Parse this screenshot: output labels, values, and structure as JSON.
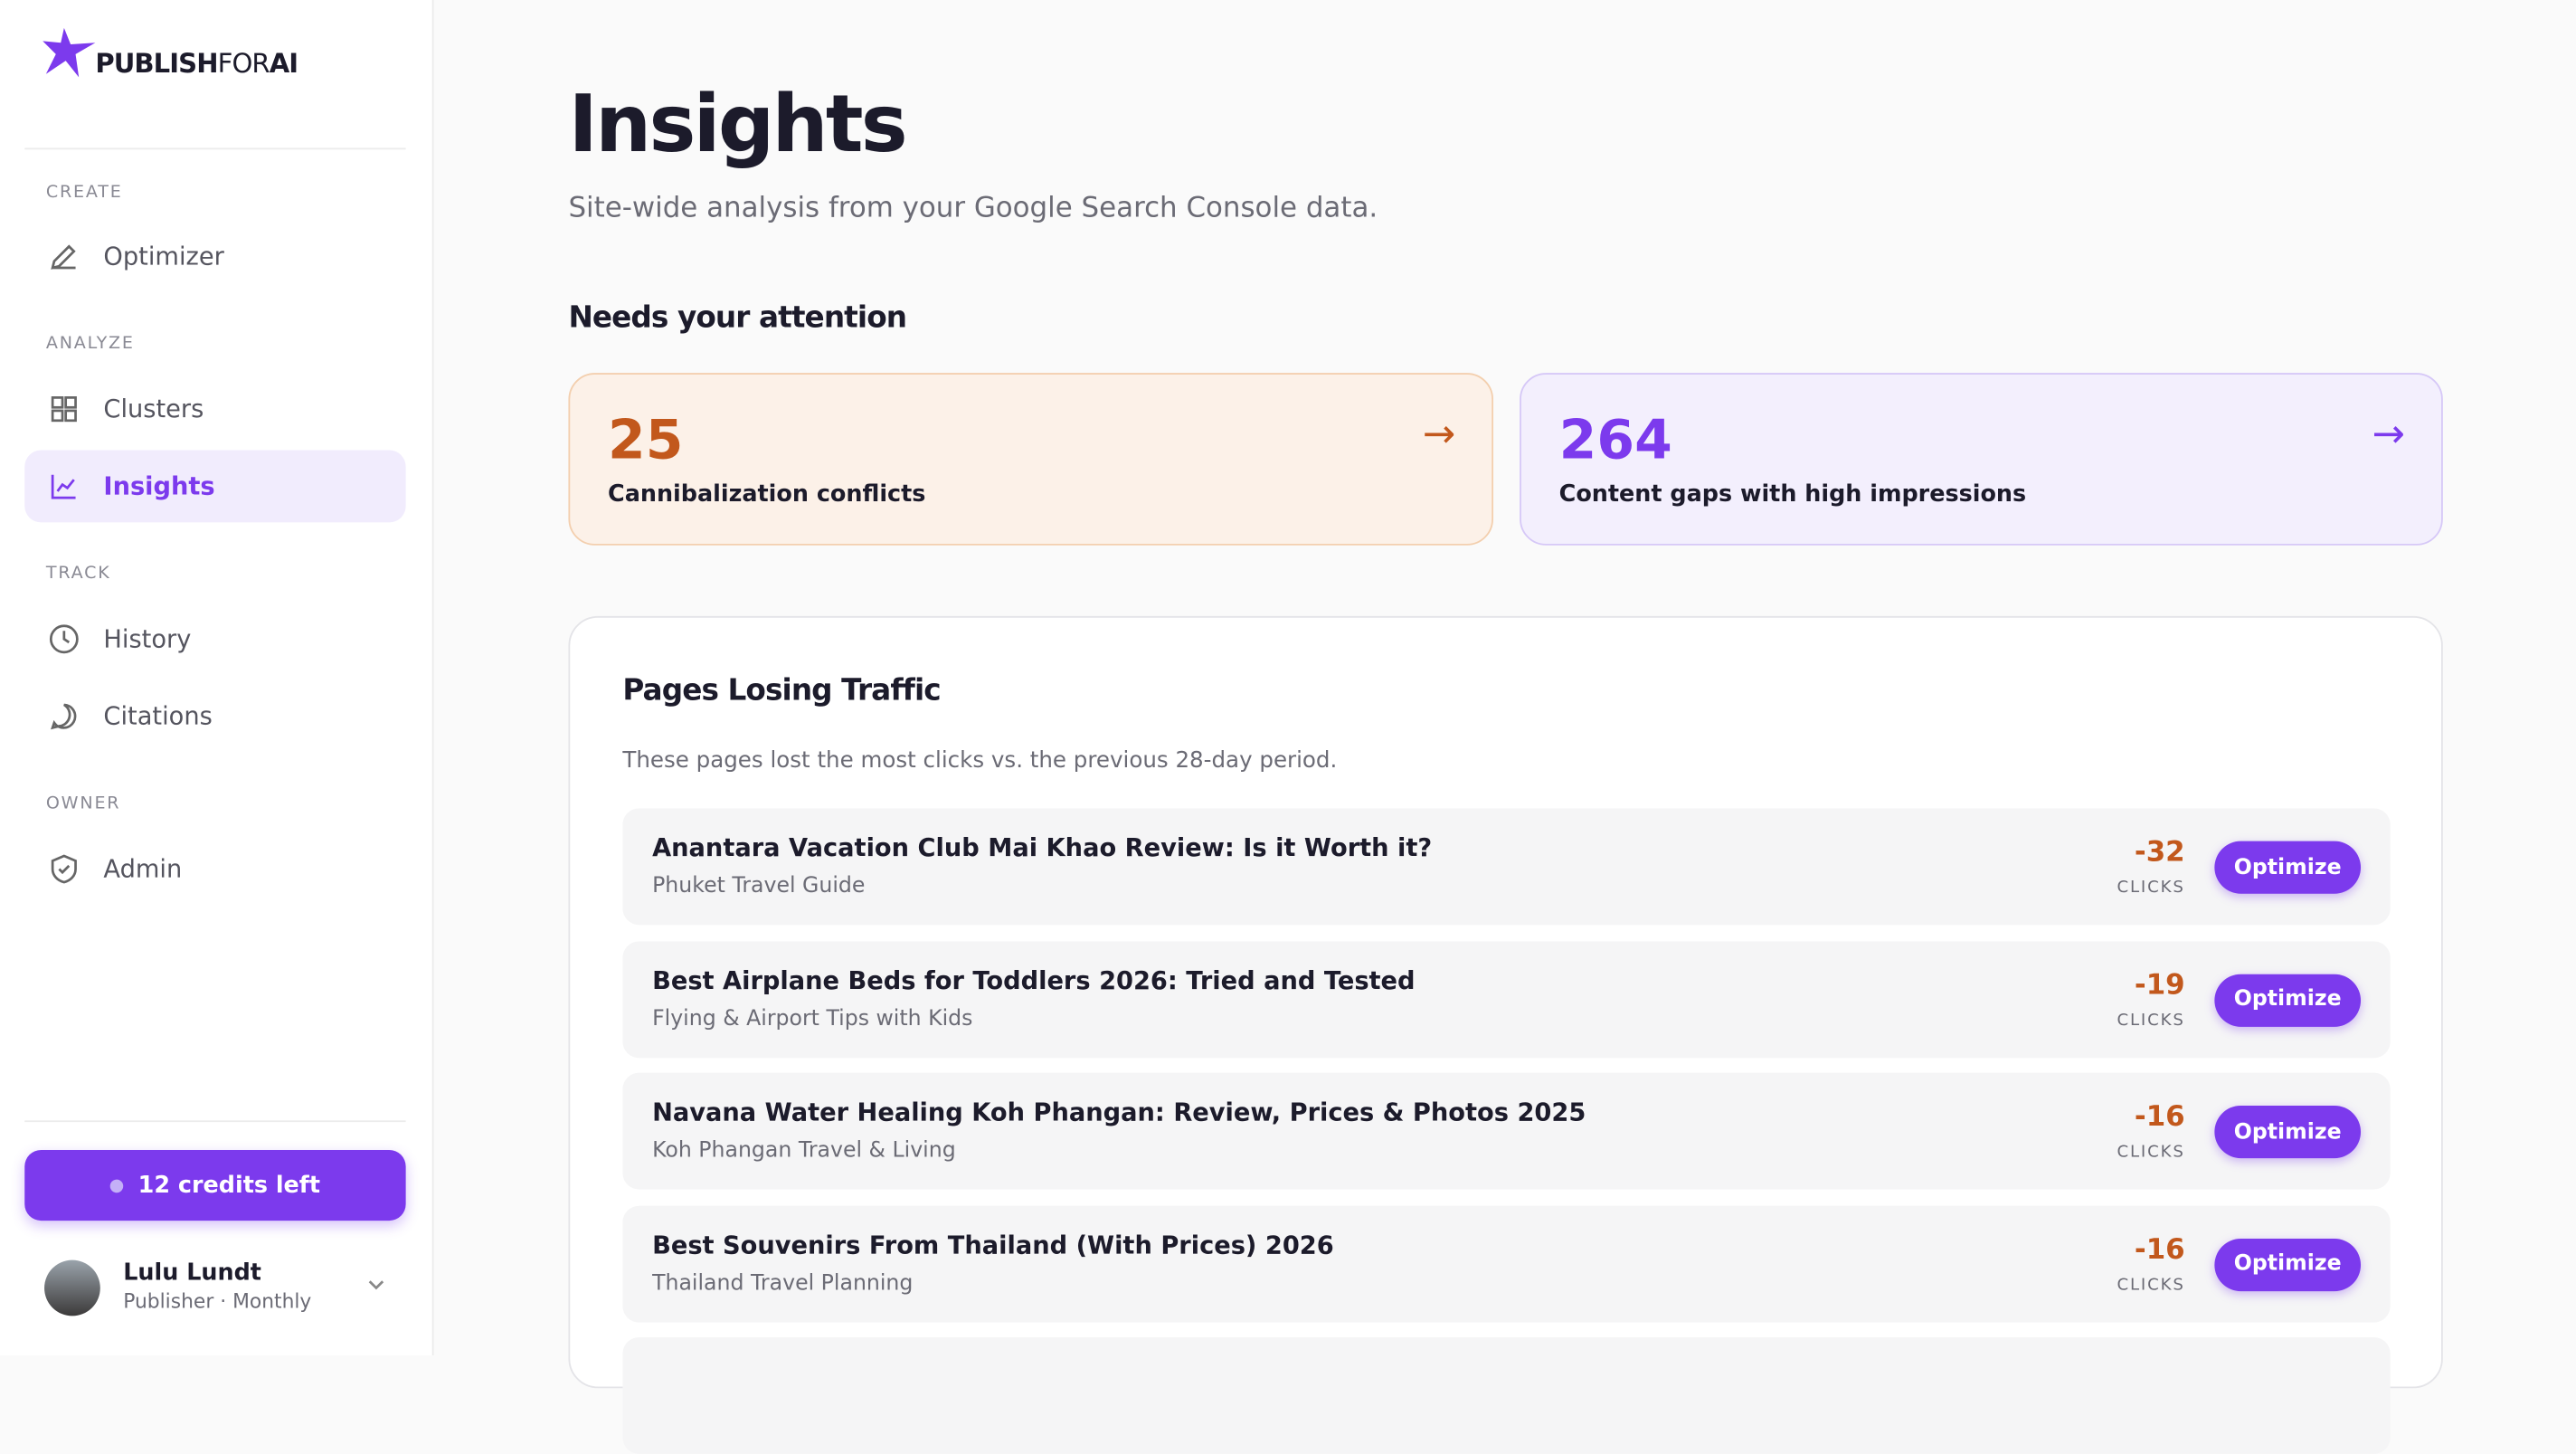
{
  "brand": {
    "main": "PUBLISH",
    "middle": "FOR",
    "end": "AI"
  },
  "sidebar": {
    "sections": [
      {
        "label": "CREATE",
        "items": [
          "Optimizer"
        ]
      },
      {
        "label": "ANALYZE",
        "items": [
          "Clusters",
          "Insights"
        ]
      },
      {
        "label": "TRACK",
        "items": [
          "History",
          "Citations"
        ]
      },
      {
        "label": "OWNER",
        "items": [
          "Admin"
        ]
      }
    ],
    "credits": "12 credits left",
    "user": {
      "name": "Lulu Lundt",
      "plan": "Publisher · Monthly"
    }
  },
  "header": {
    "title": "Insights",
    "subtitle": "Site-wide analysis from your Google Search Console data."
  },
  "attention": {
    "heading": "Needs your attention",
    "cards": [
      {
        "number": "25",
        "label": "Cannibalization conflicts"
      },
      {
        "number": "264",
        "label": "Content gaps with high impressions"
      }
    ]
  },
  "panel": {
    "title": "Pages Losing Traffic",
    "description": "These pages lost the most clicks vs. the previous 28-day period.",
    "unit": "CLICKS",
    "action": "Optimize",
    "rows": [
      {
        "title": "Anantara Vacation Club Mai Khao Review: Is it Worth it?",
        "site": "Phuket Travel Guide",
        "delta": "-32"
      },
      {
        "title": "Best Airplane Beds for Toddlers 2026: Tried and Tested",
        "site": "Flying & Airport Tips with Kids",
        "delta": "-19"
      },
      {
        "title": "Navana Water Healing Koh Phangan: Review, Prices & Photos 2025",
        "site": "Koh Phangan Travel & Living",
        "delta": "-16"
      },
      {
        "title": "Best Souvenirs From Thailand (With Prices) 2026",
        "site": "Thailand Travel Planning",
        "delta": "-16"
      }
    ]
  }
}
